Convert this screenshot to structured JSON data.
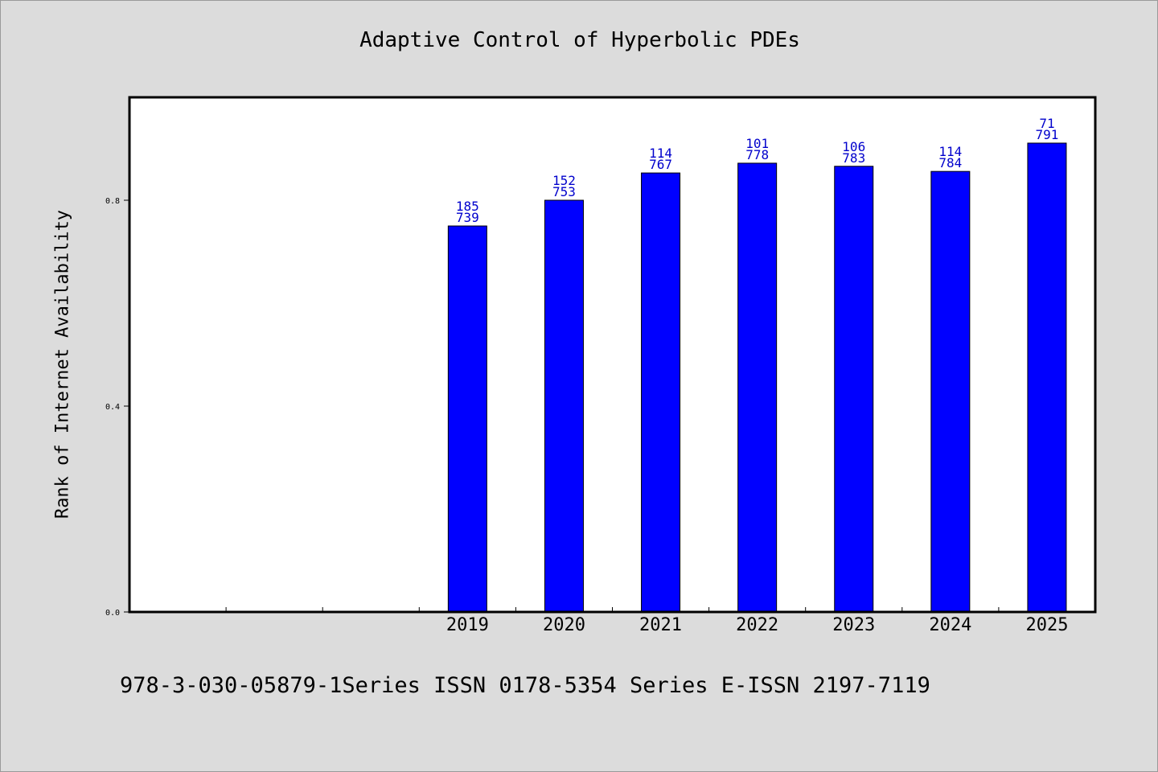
{
  "chart_data": {
    "type": "bar",
    "title": "Adaptive Control of Hyperbolic PDEs",
    "ylabel": "Rank of Internet Availability",
    "xlabel": "",
    "categories": [
      "",
      "",
      "",
      "2019",
      "2020",
      "2021",
      "2022",
      "2023",
      "2024",
      "2025"
    ],
    "values": [
      null,
      null,
      null,
      0.75,
      0.8,
      0.853,
      0.872,
      0.866,
      0.856,
      0.911
    ],
    "bar_labels": [
      [
        "",
        ""
      ],
      [
        "",
        ""
      ],
      [
        "",
        ""
      ],
      [
        "185",
        "739"
      ],
      [
        "152",
        "753"
      ],
      [
        "114",
        "767"
      ],
      [
        "101",
        "778"
      ],
      [
        "106",
        "783"
      ],
      [
        "114",
        "784"
      ],
      [
        "71",
        "791"
      ]
    ],
    "ylim": [
      0,
      1.0
    ],
    "yticks": [
      0.0,
      0.4,
      0.8
    ],
    "ytick_labels": [
      "0.0",
      "0.4",
      "0.8"
    ],
    "grid": false,
    "bar_color": "#0000ff",
    "label_color": "#0000cc"
  },
  "footer": "978-3-030-05879-1Series ISSN 0178-5354 Series E-ISSN 2197-7119"
}
